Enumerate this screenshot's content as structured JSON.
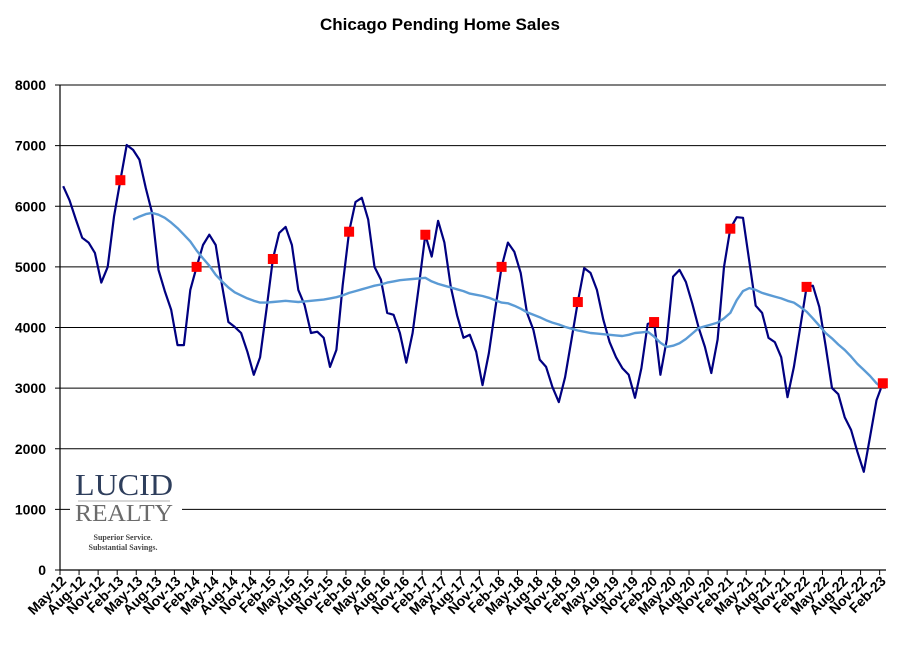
{
  "chart_data": {
    "type": "line",
    "title": "Chicago Pending Home Sales",
    "xlabel": "",
    "ylabel": "",
    "ylim": [
      0,
      8000
    ],
    "y_ticks": [
      "0",
      "1000",
      "2000",
      "3000",
      "4000",
      "5000",
      "6000",
      "7000",
      "8000"
    ],
    "grid": true,
    "legend": "none",
    "x_start": "May-12",
    "x_end": "Feb-23",
    "x_tick_labels": [
      "May-12",
      "Aug-12",
      "Nov-12",
      "Feb-13",
      "May-13",
      "Aug-13",
      "Nov-13",
      "Feb-14",
      "May-14",
      "Aug-14",
      "Nov-14",
      "Feb-15",
      "May-15",
      "Aug-15",
      "Nov-15",
      "Feb-16",
      "May-16",
      "Aug-16",
      "Nov-16",
      "Feb-17",
      "May-17",
      "Aug-17",
      "Nov-17",
      "Feb-18",
      "May-18",
      "Aug-18",
      "Nov-18",
      "Feb-19",
      "May-19",
      "Aug-19",
      "Nov-19",
      "Feb-20",
      "May-20",
      "Aug-20",
      "Nov-20",
      "Feb-21",
      "May-21",
      "Aug-21",
      "Nov-21",
      "Feb-22",
      "May-22",
      "Aug-22",
      "Nov-22",
      "Feb-23"
    ],
    "series": [
      {
        "color": "#000080",
        "style": "monthly",
        "values": [
          6330,
          6100,
          5780,
          5480,
          5400,
          5230,
          4740,
          5000,
          5830,
          6430,
          7010,
          6930,
          6770,
          6300,
          5890,
          4950,
          4600,
          4290,
          3710,
          3710,
          4620,
          5000,
          5360,
          5530,
          5360,
          4700,
          4090,
          4010,
          3910,
          3600,
          3220,
          3510,
          4300,
          5130,
          5560,
          5660,
          5360,
          4620,
          4370,
          3910,
          3930,
          3830,
          3350,
          3630,
          4700,
          5580,
          6070,
          6140,
          5780,
          5000,
          4790,
          4240,
          4210,
          3910,
          3420,
          3910,
          4700,
          5530,
          5170,
          5760,
          5400,
          4670,
          4200,
          3830,
          3880,
          3600,
          3050,
          3580,
          4300,
          5000,
          5400,
          5250,
          4900,
          4240,
          3960,
          3470,
          3350,
          3020,
          2770,
          3180,
          3800,
          4420,
          4980,
          4900,
          4620,
          4130,
          3760,
          3510,
          3330,
          3220,
          2840,
          3330,
          4060,
          4090,
          3220,
          3800,
          4840,
          4950,
          4750,
          4400,
          4000,
          3680,
          3250,
          3800,
          5000,
          5630,
          5820,
          5810,
          5080,
          4360,
          4240,
          3830,
          3760,
          3510,
          2850,
          3350,
          4000,
          4670,
          4690,
          4340,
          3700,
          3000,
          2900,
          2520,
          2310,
          1950,
          1620,
          2200,
          2800,
          3080
        ]
      },
      {
        "color": "#5B9BD5",
        "style": "moving-average",
        "values": [
          null,
          null,
          null,
          null,
          null,
          null,
          null,
          null,
          null,
          null,
          null,
          5780,
          5830,
          5870,
          5890,
          5860,
          5810,
          5730,
          5640,
          5530,
          5420,
          5270,
          5140,
          5020,
          4870,
          4760,
          4660,
          4580,
          4530,
          4480,
          4440,
          4410,
          4410,
          4420,
          4430,
          4440,
          4430,
          4420,
          4430,
          4440,
          4450,
          4460,
          4480,
          4500,
          4530,
          4570,
          4600,
          4630,
          4660,
          4690,
          4710,
          4740,
          4760,
          4780,
          4790,
          4800,
          4810,
          4820,
          4760,
          4720,
          4690,
          4660,
          4630,
          4600,
          4560,
          4540,
          4520,
          4490,
          4450,
          4410,
          4400,
          4360,
          4310,
          4250,
          4210,
          4170,
          4120,
          4080,
          4050,
          4010,
          3980,
          3950,
          3930,
          3910,
          3900,
          3890,
          3880,
          3870,
          3860,
          3880,
          3910,
          3920,
          3930,
          3850,
          3750,
          3680,
          3700,
          3740,
          3810,
          3900,
          3990,
          4020,
          4050,
          4080,
          4150,
          4240,
          4450,
          4600,
          4650,
          4620,
          4570,
          4540,
          4510,
          4480,
          4440,
          4410,
          4340,
          4260,
          4150,
          4030,
          3910,
          3820,
          3720,
          3630,
          3520,
          3400,
          3300,
          3200,
          3080,
          3000
        ]
      },
      {
        "color": "#FF0000",
        "style": "markers",
        "months": [
          "Feb-13",
          "Feb-14",
          "Feb-15",
          "Feb-16",
          "Feb-17",
          "Feb-18",
          "Feb-19",
          "Feb-20",
          "Feb-21",
          "Feb-22",
          "Feb-23"
        ],
        "values": [
          6430,
          5000,
          5130,
          5580,
          5530,
          5000,
          4420,
          4090,
          5630,
          4670,
          3080
        ]
      }
    ]
  },
  "logo": {
    "name": "LUCID",
    "sub": "REALTY",
    "tagline_1": "Superior Service.",
    "tagline_2": "Substantial Savings."
  }
}
